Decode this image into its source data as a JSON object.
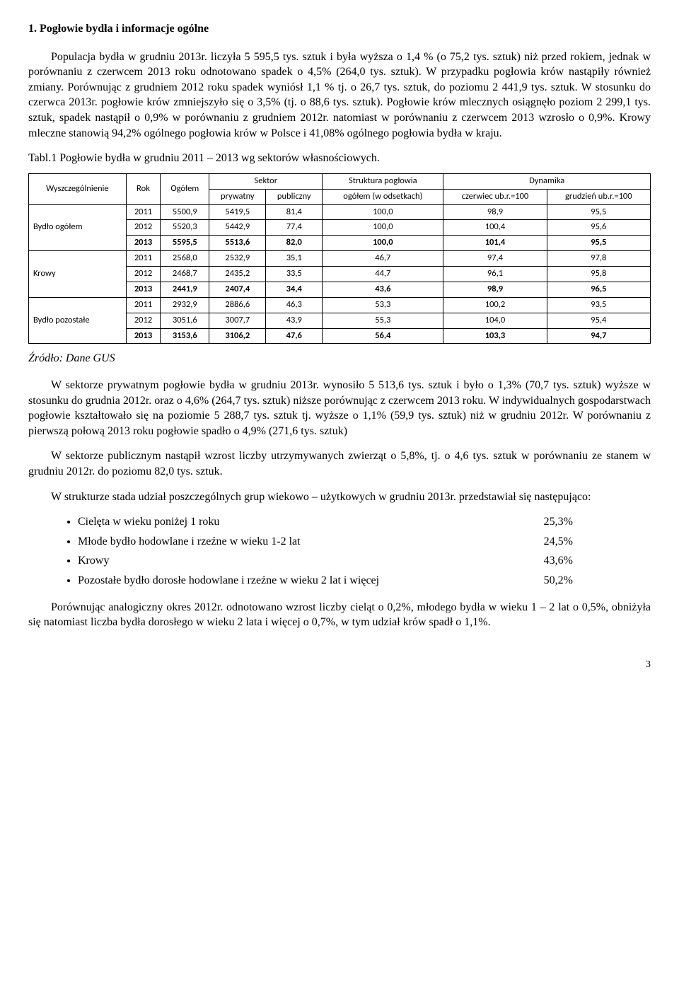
{
  "heading": "1.  Pogłowie bydła i informacje ogólne",
  "p1": "Populacja bydła w grudniu 2013r. liczyła 5 595,5 tys. sztuk i była wyższa o 1,4 % (o 75,2 tys. sztuk) niż przed rokiem, jednak w porównaniu z czerwcem 2013 roku odnotowano spadek o 4,5% (264,0 tys. sztuk). W przypadku pogłowia krów nastąpiły również zmiany. Porównując z grudniem 2012 roku spadek wyniósł 1,1 % tj. o 26,7 tys. sztuk, do poziomu 2 441,9 tys. sztuk. W stosunku do czerwca 2013r. pogłowie krów zmniejszyło się o 3,5% (tj. o 88,6 tys. sztuk). Pogłowie krów mlecznych osiągnęło poziom 2 299,1 tys. sztuk, spadek nastąpił o 0,9% w porównaniu z grudniem 2012r. natomiast w porównaniu z czerwcem 2013 wzrosło o 0,9%. Krowy mleczne stanowią 94,2% ogólnego pogłowia krów w Polsce i 41,08% ogólnego pogłowia bydła w kraju.",
  "tabl_caption": "Tabl.1 Pogłowie bydła w grudniu 2011 – 2013 wg sektorów własnościowych.",
  "table": {
    "headers": {
      "c1": "Wyszczególnienie",
      "c2": "Rok",
      "c3": "Ogółem",
      "sektor": "Sektor",
      "c4": "prywatny",
      "c5": "publiczny",
      "struktura": "Struktura pogłowia",
      "c6": "ogółem (w odsetkach)",
      "dynamika": "Dynamika",
      "c7": "czerwiec ub.r.=100",
      "c8": "grudzień ub.r.=100"
    },
    "groups": [
      {
        "label": "Bydło ogółem",
        "rows": [
          {
            "rok": "2011",
            "ogolem": "5500,9",
            "pryw": "5419,5",
            "pub": "81,4",
            "str": "100,0",
            "dyn1": "98,9",
            "dyn2": "95,5",
            "bold": false
          },
          {
            "rok": "2012",
            "ogolem": "5520,3",
            "pryw": "5442,9",
            "pub": "77,4",
            "str": "100,0",
            "dyn1": "100,4",
            "dyn2": "95,6",
            "bold": false
          },
          {
            "rok": "2013",
            "ogolem": "5595,5",
            "pryw": "5513,6",
            "pub": "82,0",
            "str": "100,0",
            "dyn1": "101,4",
            "dyn2": "95,5",
            "bold": true
          }
        ]
      },
      {
        "label": "Krowy",
        "rows": [
          {
            "rok": "2011",
            "ogolem": "2568,0",
            "pryw": "2532,9",
            "pub": "35,1",
            "str": "46,7",
            "dyn1": "97,4",
            "dyn2": "97,8",
            "bold": false
          },
          {
            "rok": "2012",
            "ogolem": "2468,7",
            "pryw": "2435,2",
            "pub": "33,5",
            "str": "44,7",
            "dyn1": "96,1",
            "dyn2": "95,8",
            "bold": false
          },
          {
            "rok": "2013",
            "ogolem": "2441,9",
            "pryw": "2407,4",
            "pub": "34,4",
            "str": "43,6",
            "dyn1": "98,9",
            "dyn2": "96,5",
            "bold": true
          }
        ]
      },
      {
        "label": "Bydło pozostałe",
        "rows": [
          {
            "rok": "2011",
            "ogolem": "2932,9",
            "pryw": "2886,6",
            "pub": "46,3",
            "str": "53,3",
            "dyn1": "100,2",
            "dyn2": "93,5",
            "bold": false
          },
          {
            "rok": "2012",
            "ogolem": "3051,6",
            "pryw": "3007,7",
            "pub": "43,9",
            "str": "55,3",
            "dyn1": "104,0",
            "dyn2": "95,4",
            "bold": false
          },
          {
            "rok": "2013",
            "ogolem": "3153,6",
            "pryw": "3106,2",
            "pub": "47,6",
            "str": "56,4",
            "dyn1": "103,3",
            "dyn2": "94,7",
            "bold": true
          }
        ]
      }
    ]
  },
  "source": "Źródło: Dane GUS",
  "p2": "W sektorze prywatnym pogłowie bydła w grudniu 2013r. wynosiło 5 513,6 tys. sztuk i było o 1,3% (70,7 tys. sztuk) wyższe w stosunku do grudnia 2012r. oraz o 4,6% (264,7 tys. sztuk) niższe porównując z czerwcem 2013 roku. W indywidualnych gospodarstwach pogłowie kształtowało się na poziomie 5 288,7 tys. sztuk tj. wyższe o 1,1% (59,9 tys. sztuk) niż w grudniu 2012r. W porównaniu z pierwszą połową 2013 roku pogłowie spadło o 4,9% (271,6 tys. sztuk)",
  "p3": "W sektorze publicznym nastąpił wzrost liczby utrzymywanych zwierząt o 5,8%, tj. o 4,6 tys. sztuk w porównaniu ze stanem w grudniu 2012r. do poziomu 82,0 tys. sztuk.",
  "p4": "W strukturze stada udział poszczególnych grup wiekowo – użytkowych w grudniu 2013r.  przedstawiał się następująco:",
  "bullets": [
    {
      "text": "Cielęta w wieku poniżej 1 roku",
      "val": "25,3%"
    },
    {
      "text": "Młode bydło hodowlane i rzeźne w wieku 1-2 lat",
      "val": "24,5%"
    },
    {
      "text": "Krowy",
      "val": "43,6%"
    },
    {
      "text": "Pozostałe bydło dorosłe hodowlane i rzeźne w wieku 2 lat i więcej",
      "val": "50,2%"
    }
  ],
  "p5": "Porównując analogiczny okres 2012r. odnotowano wzrost liczby cieląt o 0,2%, młodego bydła w wieku 1 – 2 lat o 0,5%, obniżyła się natomiast liczba bydła dorosłego w wieku 2 lata i więcej o 0,7%, w tym udział krów spadł o 1,1%.",
  "page_num": "3"
}
